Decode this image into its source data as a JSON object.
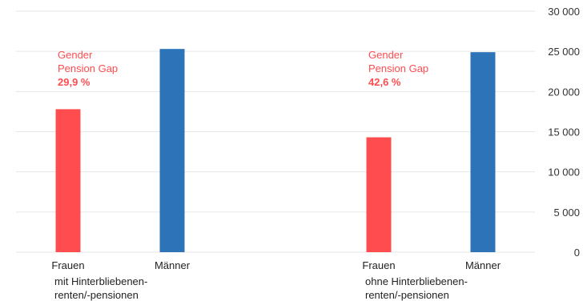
{
  "chart_data": {
    "type": "bar",
    "y_ticks": [
      "0",
      "5 000",
      "10 000",
      "15 000",
      "20 000",
      "25 000",
      "30 000"
    ],
    "ylim": [
      0,
      30000
    ],
    "grid": true,
    "groups": [
      {
        "label_lines": [
          "mit Hinterbliebenen-",
          "renten/-pensionen"
        ],
        "bars": [
          {
            "category": "Frauen",
            "value": 17800,
            "color": "#ff4c4f"
          },
          {
            "category": "Männer",
            "value": 25300,
            "color": "#2c73b8"
          }
        ],
        "annotation": {
          "line1": "Gender",
          "line2": "Pension Gap",
          "value": "29,9 %",
          "color": "#ff4c4f"
        }
      },
      {
        "label_lines": [
          "ohne Hinterbliebenen-",
          "renten/-pensionen"
        ],
        "bars": [
          {
            "category": "Frauen",
            "value": 14300,
            "color": "#ff4c4f"
          },
          {
            "category": "Männer",
            "value": 24900,
            "color": "#2c73b8"
          }
        ],
        "annotation": {
          "line1": "Gender",
          "line2": "Pension Gap",
          "value": "42,6 %",
          "color": "#ff4c4f"
        }
      }
    ]
  }
}
